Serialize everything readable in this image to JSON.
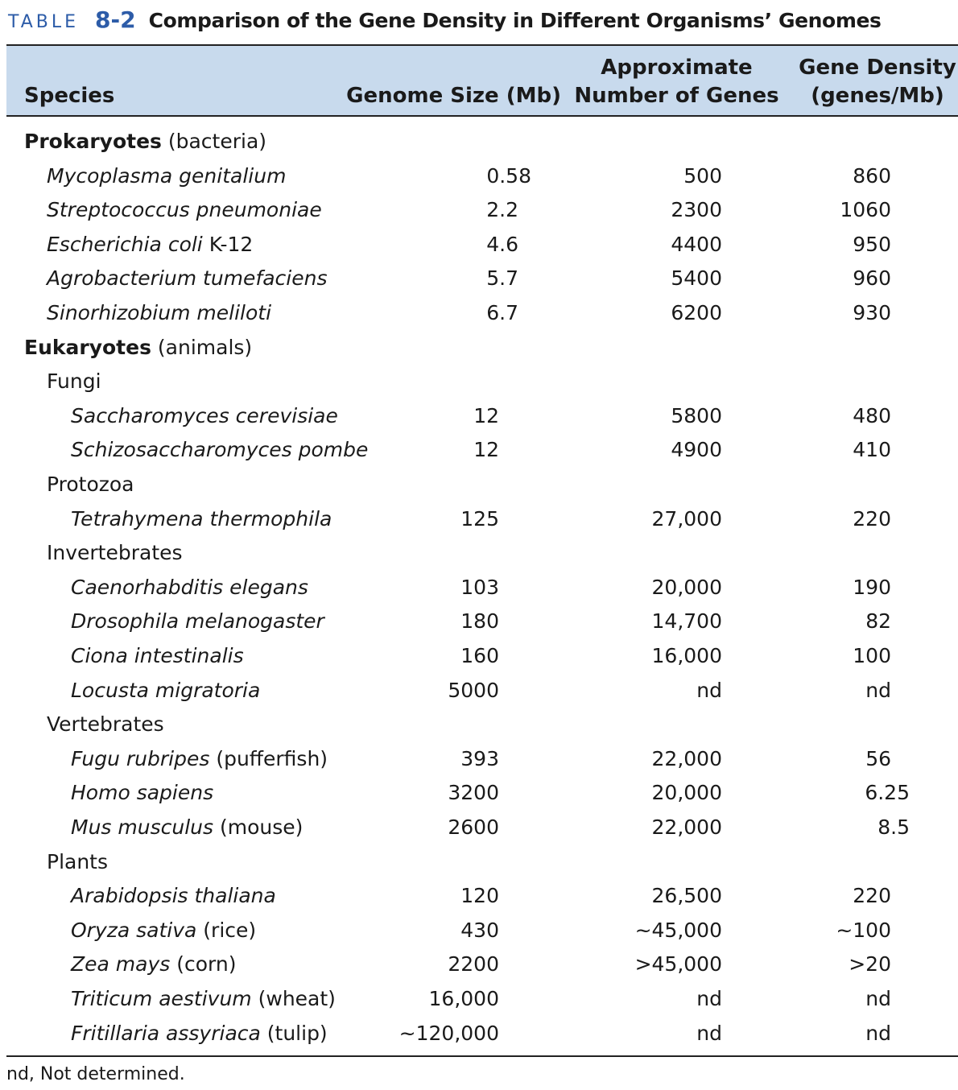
{
  "title": {
    "label": "TABLE",
    "number": "8-2",
    "text": "Comparison of the Gene Density in Different Organisms’ Genomes"
  },
  "headers": {
    "species": "Species",
    "genome_size": "Genome Size (Mb)",
    "genes_line1": "Approximate",
    "genes_line2": "Number of Genes",
    "density_line1": "Gene Density",
    "density_line2": "(genes/Mb)"
  },
  "rows": [
    {
      "kind": "cat",
      "name": "Prokaryotes",
      "suffix": " (bacteria)"
    },
    {
      "kind": "sp",
      "name": "Mycoplasma genitalium",
      "suffix": "",
      "size": "0.58",
      "genes": "500",
      "density": "860"
    },
    {
      "kind": "sp",
      "name": "Streptococcus pneumoniae",
      "suffix": "",
      "size": "2.2",
      "genes": "2300",
      "density": "1060"
    },
    {
      "kind": "sp",
      "name": "Escherichia coli",
      "suffix": " K-12",
      "size": "4.6",
      "genes": "4400",
      "density": "950"
    },
    {
      "kind": "sp",
      "name": "Agrobacterium tumefaciens",
      "suffix": "",
      "size": "5.7",
      "genes": "5400",
      "density": "960"
    },
    {
      "kind": "sp",
      "name": "Sinorhizobium meliloti",
      "suffix": "",
      "size": "6.7",
      "genes": "6200",
      "density": "930"
    },
    {
      "kind": "cat",
      "name": "Eukaryotes",
      "suffix": " (animals)"
    },
    {
      "kind": "sub",
      "name": "Fungi"
    },
    {
      "kind": "sp3",
      "name": "Saccharomyces cerevisiae",
      "suffix": "",
      "size": "12",
      "genes": "5800",
      "density": "480"
    },
    {
      "kind": "sp3",
      "name": "Schizosaccharomyces pombe",
      "suffix": "",
      "size": "12",
      "genes": "4900",
      "density": "410"
    },
    {
      "kind": "sub",
      "name": "Protozoa"
    },
    {
      "kind": "sp3",
      "name": "Tetrahymena thermophila",
      "suffix": "",
      "size": "125",
      "genes": "27,000",
      "density": "220"
    },
    {
      "kind": "sub",
      "name": "Invertebrates"
    },
    {
      "kind": "sp3",
      "name": "Caenorhabditis elegans",
      "suffix": "",
      "size": "103",
      "genes": "20,000",
      "density": "190"
    },
    {
      "kind": "sp3",
      "name": "Drosophila melanogaster",
      "suffix": "",
      "size": "180",
      "genes": "14,700",
      "density": "82"
    },
    {
      "kind": "sp3",
      "name": "Ciona intestinalis",
      "suffix": "",
      "size": "160",
      "genes": "16,000",
      "density": "100"
    },
    {
      "kind": "sp3",
      "name": "Locusta migratoria",
      "suffix": "",
      "size": "5000",
      "genes": "nd",
      "density": "nd"
    },
    {
      "kind": "sub",
      "name": "Vertebrates"
    },
    {
      "kind": "sp3",
      "name": "Fugu rubripes",
      "suffix": " (pufferfish)",
      "size": "393",
      "genes": "22,000",
      "density": "56"
    },
    {
      "kind": "sp3",
      "name": "Homo sapiens",
      "suffix": "",
      "size": "3200",
      "genes": "20,000",
      "density": "6.25"
    },
    {
      "kind": "sp3",
      "name": "Mus musculus",
      "suffix": " (mouse)",
      "size": "2600",
      "genes": "22,000",
      "density": "8.5"
    },
    {
      "kind": "sub",
      "name": "Plants"
    },
    {
      "kind": "sp3",
      "name": "Arabidopsis thaliana",
      "suffix": "",
      "size": "120",
      "genes": "26,500",
      "density": "220"
    },
    {
      "kind": "sp3",
      "name": "Oryza sativa",
      "suffix": " (rice)",
      "size": "430",
      "genes": "~45,000",
      "density": "~100"
    },
    {
      "kind": "sp3",
      "name": "Zea mays",
      "suffix": " (corn)",
      "size": "2200",
      "genes": ">45,000",
      "density": ">20"
    },
    {
      "kind": "sp3",
      "name": "Triticum aestivum",
      "suffix": " (wheat)",
      "size": "16,000",
      "genes": "nd",
      "density": "nd"
    },
    {
      "kind": "sp3",
      "name": "Fritillaria assyriaca",
      "suffix": " (tulip)",
      "size": "~120,000",
      "genes": "nd",
      "density": "nd"
    }
  ],
  "footnote": "nd, Not determined.",
  "colors": {
    "accent": "#2d5ca8",
    "header_bg": "#c8daed"
  }
}
